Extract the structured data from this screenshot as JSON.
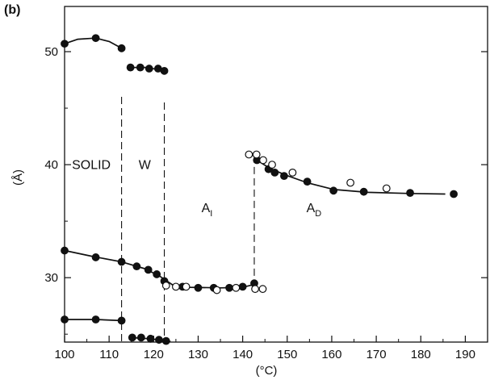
{
  "chart_data": {
    "type": "scatter",
    "panel_label": "(b)",
    "xlabel": "(°C)",
    "ylabel": "(Å)",
    "xlim": [
      100,
      195
    ],
    "ylim": [
      24.3,
      54
    ],
    "x_ticks": [
      100,
      110,
      120,
      130,
      140,
      150,
      160,
      170,
      180,
      190
    ],
    "y_ticks": [
      30,
      40,
      50
    ],
    "grid": false,
    "regions": [
      {
        "label": "SOLID",
        "sub": "",
        "x": 106
      },
      {
        "label": "W",
        "sub": "",
        "x": 118
      },
      {
        "label": "A",
        "sub": "I",
        "x": 132
      },
      {
        "label": "A",
        "sub": "D",
        "x": 156
      }
    ],
    "phase_boundaries": [
      {
        "x": 112.8,
        "y_range": [
          24.3,
          46
        ]
      },
      {
        "x": 122.4,
        "y_range": [
          24.3,
          45.5
        ]
      },
      {
        "x": 142.6,
        "y_range": [
          29.5,
          40.8
        ]
      }
    ],
    "series": [
      {
        "marker": "filled",
        "points": [
          [
            100,
            50.7
          ],
          [
            107,
            51.2
          ],
          [
            112.8,
            50.3
          ]
        ]
      },
      {
        "marker": "filled",
        "points": [
          [
            114.8,
            48.6
          ],
          [
            117,
            48.6
          ],
          [
            119,
            48.5
          ],
          [
            121,
            48.5
          ],
          [
            122.4,
            48.3
          ]
        ]
      },
      {
        "marker": "filled",
        "points": [
          [
            100,
            32.4
          ],
          [
            107,
            31.8
          ],
          [
            112.8,
            31.4
          ],
          [
            116.2,
            31.0
          ],
          [
            118.8,
            30.7
          ],
          [
            120.7,
            30.3
          ],
          [
            122.4,
            29.7
          ],
          [
            126.5,
            29.2
          ],
          [
            130,
            29.1
          ],
          [
            133.5,
            29.1
          ],
          [
            137,
            29.1
          ],
          [
            140,
            29.2
          ],
          [
            142.6,
            29.5
          ]
        ]
      },
      {
        "marker": "filled",
        "points": [
          [
            100,
            26.3
          ],
          [
            107,
            26.3
          ],
          [
            112.8,
            26.2
          ]
        ]
      },
      {
        "marker": "filled",
        "points": [
          [
            115.2,
            24.7
          ],
          [
            117.2,
            24.7
          ],
          [
            119.3,
            24.6
          ],
          [
            121.2,
            24.5
          ],
          [
            122.8,
            24.4
          ]
        ]
      },
      {
        "marker": "filled",
        "points": [
          [
            143.2,
            40.4
          ],
          [
            145.8,
            39.6
          ],
          [
            147.2,
            39.3
          ],
          [
            149.3,
            39.0
          ],
          [
            154.5,
            38.5
          ],
          [
            160.4,
            37.7
          ],
          [
            167.2,
            37.6
          ],
          [
            177.6,
            37.5
          ],
          [
            187.4,
            37.4
          ]
        ]
      },
      {
        "marker": "open",
        "points": [
          [
            122.8,
            29.3
          ],
          [
            125,
            29.2
          ],
          [
            127.3,
            29.2
          ],
          [
            134.2,
            28.9
          ],
          [
            138.5,
            29.1
          ],
          [
            142.8,
            29.0
          ],
          [
            144.5,
            29.0
          ],
          [
            141.4,
            40.9
          ],
          [
            143.1,
            40.9
          ],
          [
            144.6,
            40.4
          ],
          [
            146.6,
            40.0
          ],
          [
            151.2,
            39.3
          ],
          [
            164.2,
            38.4
          ],
          [
            172.3,
            37.9
          ]
        ]
      }
    ],
    "fit_curves": [
      [
        [
          100,
          50.7
        ],
        [
          103,
          51.1
        ],
        [
          107,
          51.2
        ],
        [
          110,
          50.9
        ],
        [
          112.8,
          50.3
        ]
      ],
      [
        [
          114.8,
          48.6
        ],
        [
          118.5,
          48.6
        ],
        [
          122.4,
          48.3
        ]
      ],
      [
        [
          100,
          32.4
        ],
        [
          106,
          31.9
        ],
        [
          112.8,
          31.4
        ],
        [
          118,
          30.8
        ],
        [
          121.5,
          30.1
        ],
        [
          124.5,
          29.3
        ],
        [
          128,
          29.15
        ],
        [
          135,
          29.1
        ],
        [
          140,
          29.15
        ],
        [
          142.6,
          29.4
        ]
      ],
      [
        [
          100,
          26.3
        ],
        [
          107,
          26.3
        ],
        [
          112.8,
          26.2
        ]
      ],
      [
        [
          114.8,
          24.7
        ],
        [
          119,
          24.6
        ],
        [
          122.8,
          24.4
        ],
        [
          123.8,
          24.35
        ]
      ],
      [
        [
          143.2,
          40.4
        ],
        [
          146,
          39.7
        ],
        [
          149.5,
          39.1
        ],
        [
          154.5,
          38.4
        ],
        [
          160.5,
          37.8
        ],
        [
          168,
          37.55
        ],
        [
          177.5,
          37.45
        ],
        [
          185.5,
          37.4
        ]
      ]
    ]
  }
}
